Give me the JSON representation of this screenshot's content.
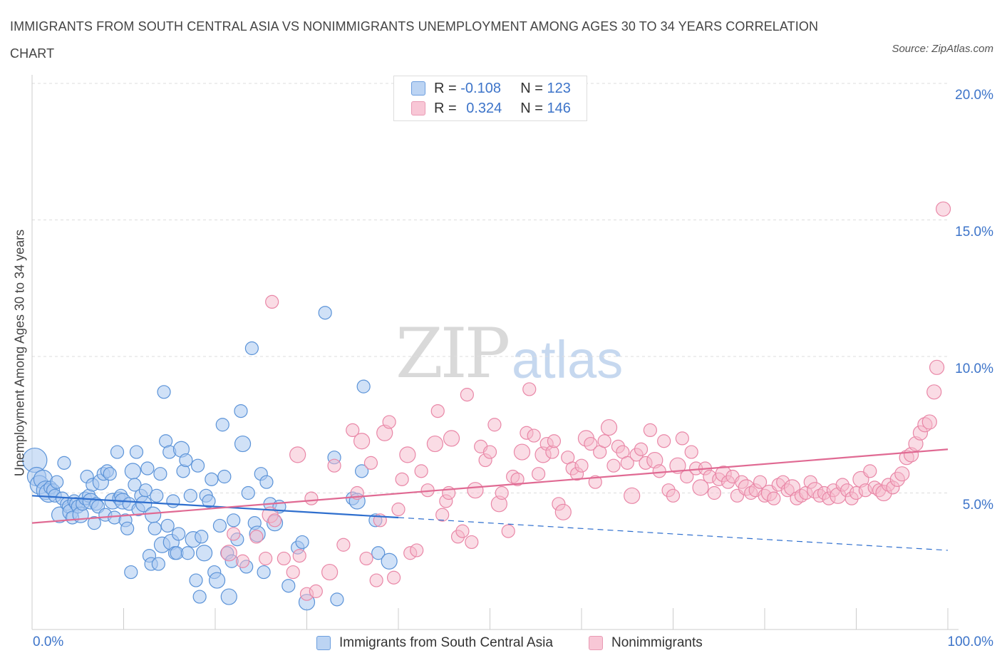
{
  "title": "IMMIGRANTS FROM SOUTH CENTRAL ASIA VS NONIMMIGRANTS UNEMPLOYMENT AMONG AGES 30 TO 34 YEARS CORRELATION CHART",
  "source": "Source: ZipAtlas.com",
  "watermark": {
    "zip": "ZIP",
    "atlas": "atlas"
  },
  "legend": {
    "r_label": "R =",
    "n_label": "N =",
    "series1": {
      "r": "-0.108",
      "n": "123"
    },
    "series2": {
      "r": "0.324",
      "n": "146"
    }
  },
  "colors": {
    "blue_fill": "#a9c8f0",
    "blue_stroke": "#5b93d8",
    "blue_line": "#2f6fce",
    "pink_fill": "#f6b9cb",
    "pink_stroke": "#e987a7",
    "pink_line": "#e06a93",
    "tick_text": "#3d74c9",
    "grid": "#dddddd"
  },
  "chart_data": {
    "type": "scatter",
    "title": "IMMIGRANTS FROM SOUTH CENTRAL ASIA VS NONIMMIGRANTS UNEMPLOYMENT AMONG AGES 30 TO 34 YEARS CORRELATION CHART",
    "xlabel": "",
    "ylabel": "Unemployment Among Ages 30 to 34 years",
    "xlim": [
      0,
      100
    ],
    "ylim": [
      0,
      20
    ],
    "x_tick_labels": [
      "0.0%",
      "100.0%"
    ],
    "y_ticks": [
      5,
      10,
      15,
      20
    ],
    "y_tick_labels": [
      "5.0%",
      "10.0%",
      "15.0%",
      "20.0%"
    ],
    "grid": "horizontal dashed",
    "legend_position": "top-center",
    "series": [
      {
        "name": "Immigrants from South Central Asia",
        "color": "#a9c8f0",
        "R": -0.108,
        "N": 123,
        "trend": {
          "x": [
            0,
            40
          ],
          "y": [
            4.9,
            4.1
          ]
        },
        "trend_extended": {
          "x": [
            40,
            100
          ],
          "y": [
            4.1,
            2.9
          ]
        },
        "points": [
          [
            0.3,
            6.2
          ],
          [
            0.5,
            5.6
          ],
          [
            0.8,
            5.3
          ],
          [
            1.2,
            5.5
          ],
          [
            1.5,
            5.1
          ],
          [
            1.8,
            5.0
          ],
          [
            2.0,
            5.2
          ],
          [
            2.3,
            5.1
          ],
          [
            2.5,
            4.9
          ],
          [
            2.7,
            5.4
          ],
          [
            3.0,
            4.2
          ],
          [
            3.3,
            4.8
          ],
          [
            3.5,
            6.1
          ],
          [
            3.8,
            4.6
          ],
          [
            4.0,
            4.5
          ],
          [
            4.2,
            4.3
          ],
          [
            4.4,
            4.1
          ],
          [
            4.6,
            4.7
          ],
          [
            4.8,
            4.6
          ],
          [
            5.0,
            4.5
          ],
          [
            5.3,
            4.2
          ],
          [
            5.5,
            4.6
          ],
          [
            5.8,
            4.8
          ],
          [
            6.0,
            5.6
          ],
          [
            6.2,
            4.9
          ],
          [
            6.4,
            4.7
          ],
          [
            6.6,
            5.3
          ],
          [
            6.8,
            3.9
          ],
          [
            7.0,
            4.6
          ],
          [
            7.2,
            4.5
          ],
          [
            7.5,
            5.4
          ],
          [
            7.8,
            5.7
          ],
          [
            8.0,
            4.2
          ],
          [
            8.2,
            5.8
          ],
          [
            8.5,
            5.7
          ],
          [
            8.8,
            4.7
          ],
          [
            9.0,
            4.1
          ],
          [
            9.3,
            6.5
          ],
          [
            9.5,
            4.8
          ],
          [
            9.7,
            4.9
          ],
          [
            9.9,
            4.7
          ],
          [
            10.2,
            4.0
          ],
          [
            10.4,
            3.7
          ],
          [
            10.6,
            4.6
          ],
          [
            10.8,
            2.1
          ],
          [
            11.0,
            5.8
          ],
          [
            11.2,
            5.3
          ],
          [
            11.4,
            6.5
          ],
          [
            11.6,
            4.4
          ],
          [
            11.9,
            4.9
          ],
          [
            12.2,
            4.6
          ],
          [
            12.4,
            5.1
          ],
          [
            12.6,
            5.9
          ],
          [
            12.8,
            2.7
          ],
          [
            13.0,
            2.4
          ],
          [
            13.2,
            4.2
          ],
          [
            13.4,
            3.7
          ],
          [
            13.6,
            4.9
          ],
          [
            13.8,
            2.4
          ],
          [
            14.0,
            5.7
          ],
          [
            14.2,
            3.1
          ],
          [
            14.4,
            8.7
          ],
          [
            14.6,
            6.9
          ],
          [
            14.8,
            3.8
          ],
          [
            15.0,
            6.5
          ],
          [
            15.2,
            3.2
          ],
          [
            15.4,
            4.7
          ],
          [
            15.6,
            2.8
          ],
          [
            15.8,
            2.8
          ],
          [
            16.0,
            3.5
          ],
          [
            16.3,
            6.6
          ],
          [
            16.5,
            5.8
          ],
          [
            16.8,
            6.2
          ],
          [
            17.0,
            2.8
          ],
          [
            17.3,
            4.9
          ],
          [
            17.6,
            3.3
          ],
          [
            17.9,
            1.8
          ],
          [
            18.1,
            6.0
          ],
          [
            18.3,
            1.2
          ],
          [
            18.5,
            3.4
          ],
          [
            18.8,
            2.8
          ],
          [
            19.0,
            4.9
          ],
          [
            19.3,
            4.7
          ],
          [
            19.6,
            5.5
          ],
          [
            19.9,
            2.1
          ],
          [
            20.2,
            1.8
          ],
          [
            20.5,
            3.8
          ],
          [
            20.8,
            7.5
          ],
          [
            21.0,
            5.6
          ],
          [
            21.3,
            2.8
          ],
          [
            21.5,
            1.2
          ],
          [
            21.8,
            2.5
          ],
          [
            22.0,
            4.0
          ],
          [
            22.4,
            3.3
          ],
          [
            22.8,
            8.0
          ],
          [
            23.0,
            6.8
          ],
          [
            23.4,
            2.3
          ],
          [
            23.6,
            5.0
          ],
          [
            24.0,
            10.3
          ],
          [
            24.3,
            3.9
          ],
          [
            24.6,
            3.5
          ],
          [
            25.0,
            5.7
          ],
          [
            25.3,
            2.1
          ],
          [
            25.6,
            5.4
          ],
          [
            26.0,
            4.6
          ],
          [
            26.5,
            3.9
          ],
          [
            27.0,
            4.5
          ],
          [
            28.0,
            1.6
          ],
          [
            29.0,
            3.0
          ],
          [
            29.5,
            3.2
          ],
          [
            30.0,
            1.0
          ],
          [
            32.0,
            11.6
          ],
          [
            33.0,
            6.3
          ],
          [
            33.3,
            1.1
          ],
          [
            35.0,
            4.8
          ],
          [
            35.5,
            4.7
          ],
          [
            36.0,
            5.8
          ],
          [
            36.2,
            8.9
          ],
          [
            37.5,
            4.0
          ],
          [
            37.8,
            2.8
          ],
          [
            39.0,
            2.5
          ]
        ]
      },
      {
        "name": "Nonimmigrants",
        "color": "#f6b9cb",
        "R": 0.324,
        "N": 146,
        "trend": {
          "x": [
            0,
            100
          ],
          "y": [
            3.9,
            6.6
          ]
        },
        "points": [
          [
            21.5,
            2.8
          ],
          [
            22.0,
            3.5
          ],
          [
            23.0,
            2.5
          ],
          [
            24.5,
            3.4
          ],
          [
            25.5,
            2.6
          ],
          [
            26.0,
            4.2
          ],
          [
            26.5,
            4.0
          ],
          [
            26.2,
            12.0
          ],
          [
            27.5,
            2.6
          ],
          [
            28.5,
            2.1
          ],
          [
            29.0,
            6.4
          ],
          [
            29.2,
            2.7
          ],
          [
            30.0,
            1.3
          ],
          [
            30.5,
            4.8
          ],
          [
            31.0,
            1.4
          ],
          [
            32.5,
            2.1
          ],
          [
            33.0,
            6.0
          ],
          [
            34.0,
            3.1
          ],
          [
            35.0,
            7.3
          ],
          [
            35.5,
            5.0
          ],
          [
            36.0,
            6.9
          ],
          [
            36.5,
            2.6
          ],
          [
            37.0,
            6.1
          ],
          [
            37.6,
            1.8
          ],
          [
            38.0,
            4.0
          ],
          [
            38.5,
            7.2
          ],
          [
            39.0,
            7.6
          ],
          [
            39.5,
            1.9
          ],
          [
            40.0,
            4.4
          ],
          [
            40.4,
            5.5
          ],
          [
            41.0,
            6.4
          ],
          [
            41.3,
            2.8
          ],
          [
            42.0,
            2.9
          ],
          [
            42.5,
            5.8
          ],
          [
            43.2,
            5.1
          ],
          [
            44.0,
            6.8
          ],
          [
            44.3,
            8.0
          ],
          [
            44.8,
            4.2
          ],
          [
            45.2,
            4.7
          ],
          [
            45.5,
            5.0
          ],
          [
            45.8,
            7.0
          ],
          [
            46.5,
            3.4
          ],
          [
            47.0,
            3.6
          ],
          [
            47.5,
            8.6
          ],
          [
            48.0,
            3.2
          ],
          [
            48.4,
            5.1
          ],
          [
            49.0,
            6.7
          ],
          [
            49.5,
            6.2
          ],
          [
            50.0,
            6.5
          ],
          [
            50.5,
            7.5
          ],
          [
            51.0,
            4.6
          ],
          [
            51.3,
            5.0
          ],
          [
            52.0,
            3.6
          ],
          [
            52.5,
            5.6
          ],
          [
            53.0,
            5.5
          ],
          [
            53.5,
            6.5
          ],
          [
            54.0,
            7.2
          ],
          [
            54.3,
            8.8
          ],
          [
            54.8,
            7.1
          ],
          [
            55.3,
            5.7
          ],
          [
            55.8,
            6.4
          ],
          [
            56.2,
            6.8
          ],
          [
            56.8,
            6.5
          ],
          [
            57.0,
            6.9
          ],
          [
            57.5,
            4.6
          ],
          [
            58.0,
            4.3
          ],
          [
            58.5,
            6.3
          ],
          [
            59.0,
            5.9
          ],
          [
            59.5,
            5.7
          ],
          [
            60.0,
            6.0
          ],
          [
            60.5,
            7.0
          ],
          [
            61.0,
            6.8
          ],
          [
            61.5,
            5.4
          ],
          [
            62.0,
            6.5
          ],
          [
            62.5,
            6.9
          ],
          [
            63.0,
            7.4
          ],
          [
            63.5,
            6.0
          ],
          [
            64.0,
            6.7
          ],
          [
            64.5,
            6.5
          ],
          [
            65.0,
            6.1
          ],
          [
            65.5,
            4.9
          ],
          [
            66.0,
            6.4
          ],
          [
            66.5,
            6.6
          ],
          [
            67.0,
            6.1
          ],
          [
            67.5,
            7.3
          ],
          [
            68.0,
            6.2
          ],
          [
            68.5,
            5.8
          ],
          [
            69.0,
            6.9
          ],
          [
            69.5,
            5.1
          ],
          [
            70.0,
            4.9
          ],
          [
            70.5,
            6.0
          ],
          [
            71.0,
            7.0
          ],
          [
            71.5,
            5.6
          ],
          [
            72.0,
            6.5
          ],
          [
            72.5,
            5.9
          ],
          [
            73.0,
            5.2
          ],
          [
            73.5,
            5.9
          ],
          [
            74.0,
            5.6
          ],
          [
            74.5,
            5.0
          ],
          [
            75.0,
            5.5
          ],
          [
            75.5,
            5.7
          ],
          [
            76.0,
            5.4
          ],
          [
            76.5,
            5.6
          ],
          [
            77.0,
            4.9
          ],
          [
            77.5,
            5.4
          ],
          [
            78.0,
            5.2
          ],
          [
            78.5,
            5.0
          ],
          [
            79.0,
            5.1
          ],
          [
            79.5,
            5.4
          ],
          [
            80.0,
            4.9
          ],
          [
            80.5,
            5.0
          ],
          [
            81.0,
            4.8
          ],
          [
            81.5,
            5.3
          ],
          [
            82.0,
            5.4
          ],
          [
            82.5,
            5.1
          ],
          [
            83.0,
            5.2
          ],
          [
            83.5,
            4.8
          ],
          [
            84.0,
            4.9
          ],
          [
            84.5,
            5.0
          ],
          [
            85.0,
            5.4
          ],
          [
            85.5,
            5.1
          ],
          [
            86.0,
            4.9
          ],
          [
            86.5,
            5.0
          ],
          [
            87.0,
            4.8
          ],
          [
            87.5,
            5.1
          ],
          [
            88.0,
            4.9
          ],
          [
            88.5,
            5.3
          ],
          [
            89.0,
            5.1
          ],
          [
            89.5,
            4.8
          ],
          [
            90.0,
            5.0
          ],
          [
            90.5,
            5.5
          ],
          [
            91.0,
            5.1
          ],
          [
            91.5,
            5.8
          ],
          [
            92.0,
            5.2
          ],
          [
            92.5,
            5.1
          ],
          [
            93.0,
            5.0
          ],
          [
            93.5,
            5.3
          ],
          [
            94.0,
            5.2
          ],
          [
            94.5,
            5.5
          ],
          [
            95.0,
            5.7
          ],
          [
            95.5,
            6.3
          ],
          [
            96.0,
            6.4
          ],
          [
            96.5,
            6.8
          ],
          [
            97.0,
            7.2
          ],
          [
            97.5,
            7.5
          ],
          [
            98.0,
            7.6
          ],
          [
            98.5,
            8.7
          ],
          [
            98.8,
            9.6
          ],
          [
            99.5,
            15.4
          ]
        ]
      }
    ]
  },
  "bottom_legend": {
    "series1": "Immigrants from South Central Asia",
    "series2": "Nonimmigrants"
  }
}
